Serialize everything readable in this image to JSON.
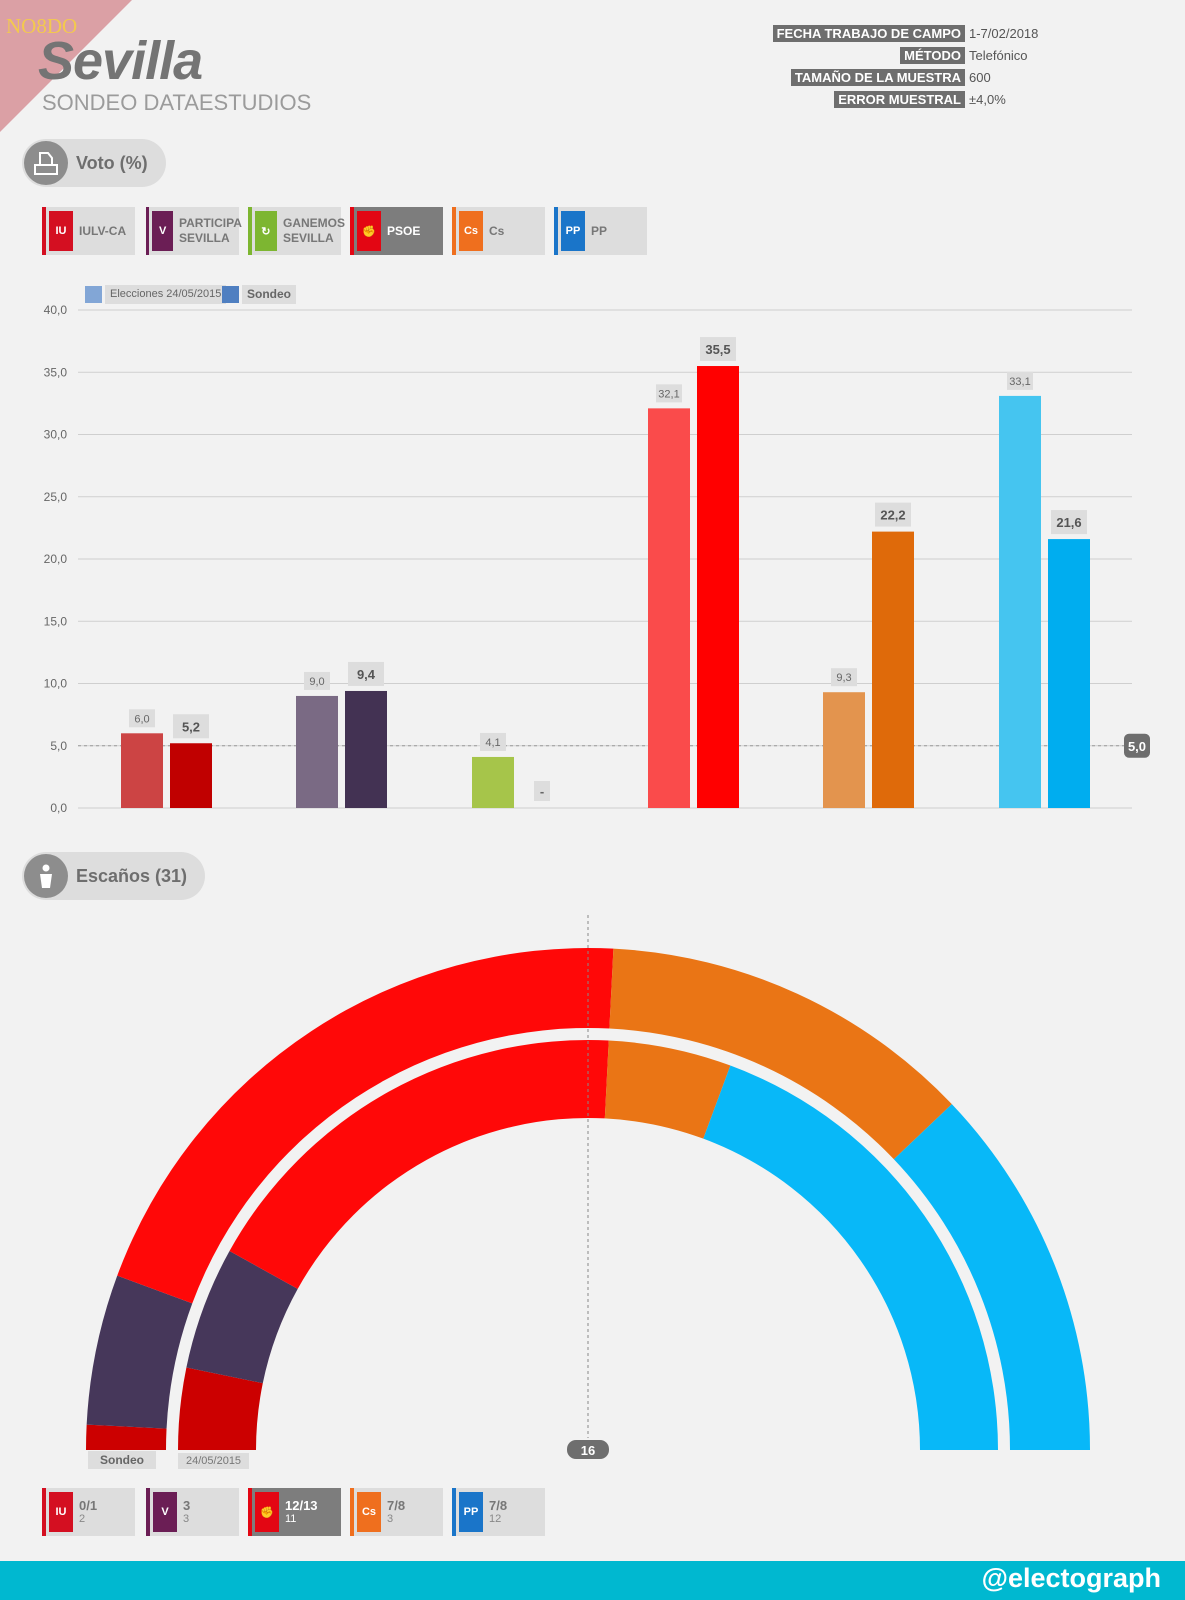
{
  "header": {
    "brand": "NO8DO",
    "city": "Sevilla",
    "subtitle": "SONDEO DATAESTUDIOS",
    "meta": [
      {
        "key": "FECHA TRABAJO DE CAMPO",
        "value": "1-7/02/2018"
      },
      {
        "key": "MÉTODO",
        "value": "Telefónico"
      },
      {
        "key": "TAMAÑO DE LA MUESTRA",
        "value": "600"
      },
      {
        "key": "ERROR MUESTRAL",
        "value": "±4,0%"
      }
    ]
  },
  "vote_section": {
    "title": "Voto (%)"
  },
  "seats_section": {
    "title": "Escaños (31)"
  },
  "parties": [
    {
      "name": "IULV-CA",
      "color": "#d40f21"
    },
    {
      "name": "PARTICIPA SEVILLA",
      "color": "#6b1e55"
    },
    {
      "name": "GANEMOS SEVILLA",
      "color": "#7db631"
    },
    {
      "name": "PSOE",
      "color": "#e30613"
    },
    {
      "name": "Cs",
      "color": "#ef6f1e"
    },
    {
      "name": "PP",
      "color": "#1a75c9"
    }
  ],
  "chart_data": [
    {
      "type": "bar",
      "title": "Voto (%)",
      "categories": [
        "IULV-CA",
        "PARTICIPA SEVILLA",
        "GANEMOS SEVILLA",
        "PSOE",
        "Cs",
        "PP"
      ],
      "series": [
        {
          "name": "Elecciones 24/05/2015",
          "values": [
            6.0,
            9.0,
            4.1,
            32.1,
            9.3,
            33.1
          ],
          "labels": [
            "6,0",
            "9,0",
            "4,1",
            "32,1",
            "9,3",
            "33,1"
          ],
          "colors": [
            "#cc4444",
            "#7a6a84",
            "#a6c54a",
            "#fa4b4b",
            "#e3944e",
            "#45c5f0"
          ]
        },
        {
          "name": "Sondeo",
          "values": [
            5.2,
            9.4,
            null,
            35.5,
            22.2,
            21.6
          ],
          "labels": [
            "5,2",
            "9,4",
            "-",
            "35,5",
            "22,2",
            "21,6"
          ],
          "colors": [
            "#c00000",
            "#433253",
            "#a6c54a",
            "#ff0000",
            "#df6a0a",
            "#00adef"
          ]
        }
      ],
      "ylim": [
        0,
        40
      ],
      "yticks": [
        "0,0",
        "5,0",
        "10,0",
        "15,0",
        "20,0",
        "25,0",
        "30,0",
        "35,0",
        "40,0"
      ],
      "threshold": {
        "value": 5.0,
        "label": "5,0"
      },
      "legend_colors": [
        "#82a6d6",
        "#4f7fc1"
      ]
    },
    {
      "type": "pie",
      "title": "Escaños (31)",
      "majority": "16",
      "rings": [
        {
          "name": "Sondeo",
          "segments": [
            {
              "party": "IULV-CA",
              "seats": 0.5,
              "color": "#cc0000"
            },
            {
              "party": "PARTICIPA SEVILLA",
              "seats": 3,
              "color": "#46375a"
            },
            {
              "party": "PSOE",
              "seats": 12.5,
              "color": "#ff0808"
            },
            {
              "party": "Cs",
              "seats": 7.5,
              "color": "#ea7515"
            },
            {
              "party": "PP",
              "seats": 7.5,
              "color": "#08b8f8"
            }
          ]
        },
        {
          "name": "24/05/2015",
          "segments": [
            {
              "party": "IULV-CA",
              "seats": 2,
              "color": "#cc0000"
            },
            {
              "party": "PARTICIPA SEVILLA",
              "seats": 3,
              "color": "#46375a"
            },
            {
              "party": "PSOE",
              "seats": 11,
              "color": "#ff0808"
            },
            {
              "party": "Cs",
              "seats": 3,
              "color": "#ea7515"
            },
            {
              "party": "PP",
              "seats": 12,
              "color": "#08b8f8"
            }
          ]
        }
      ]
    }
  ],
  "seats_summary": [
    {
      "sondeo": "0/1",
      "previous": "2"
    },
    {
      "sondeo": "3",
      "previous": "3"
    },
    {
      "sondeo": "12/13",
      "previous": "11"
    },
    {
      "sondeo": "7/8",
      "previous": "3"
    },
    {
      "sondeo": "7/8",
      "previous": "12"
    }
  ],
  "footer": {
    "handle": "@electograph"
  }
}
